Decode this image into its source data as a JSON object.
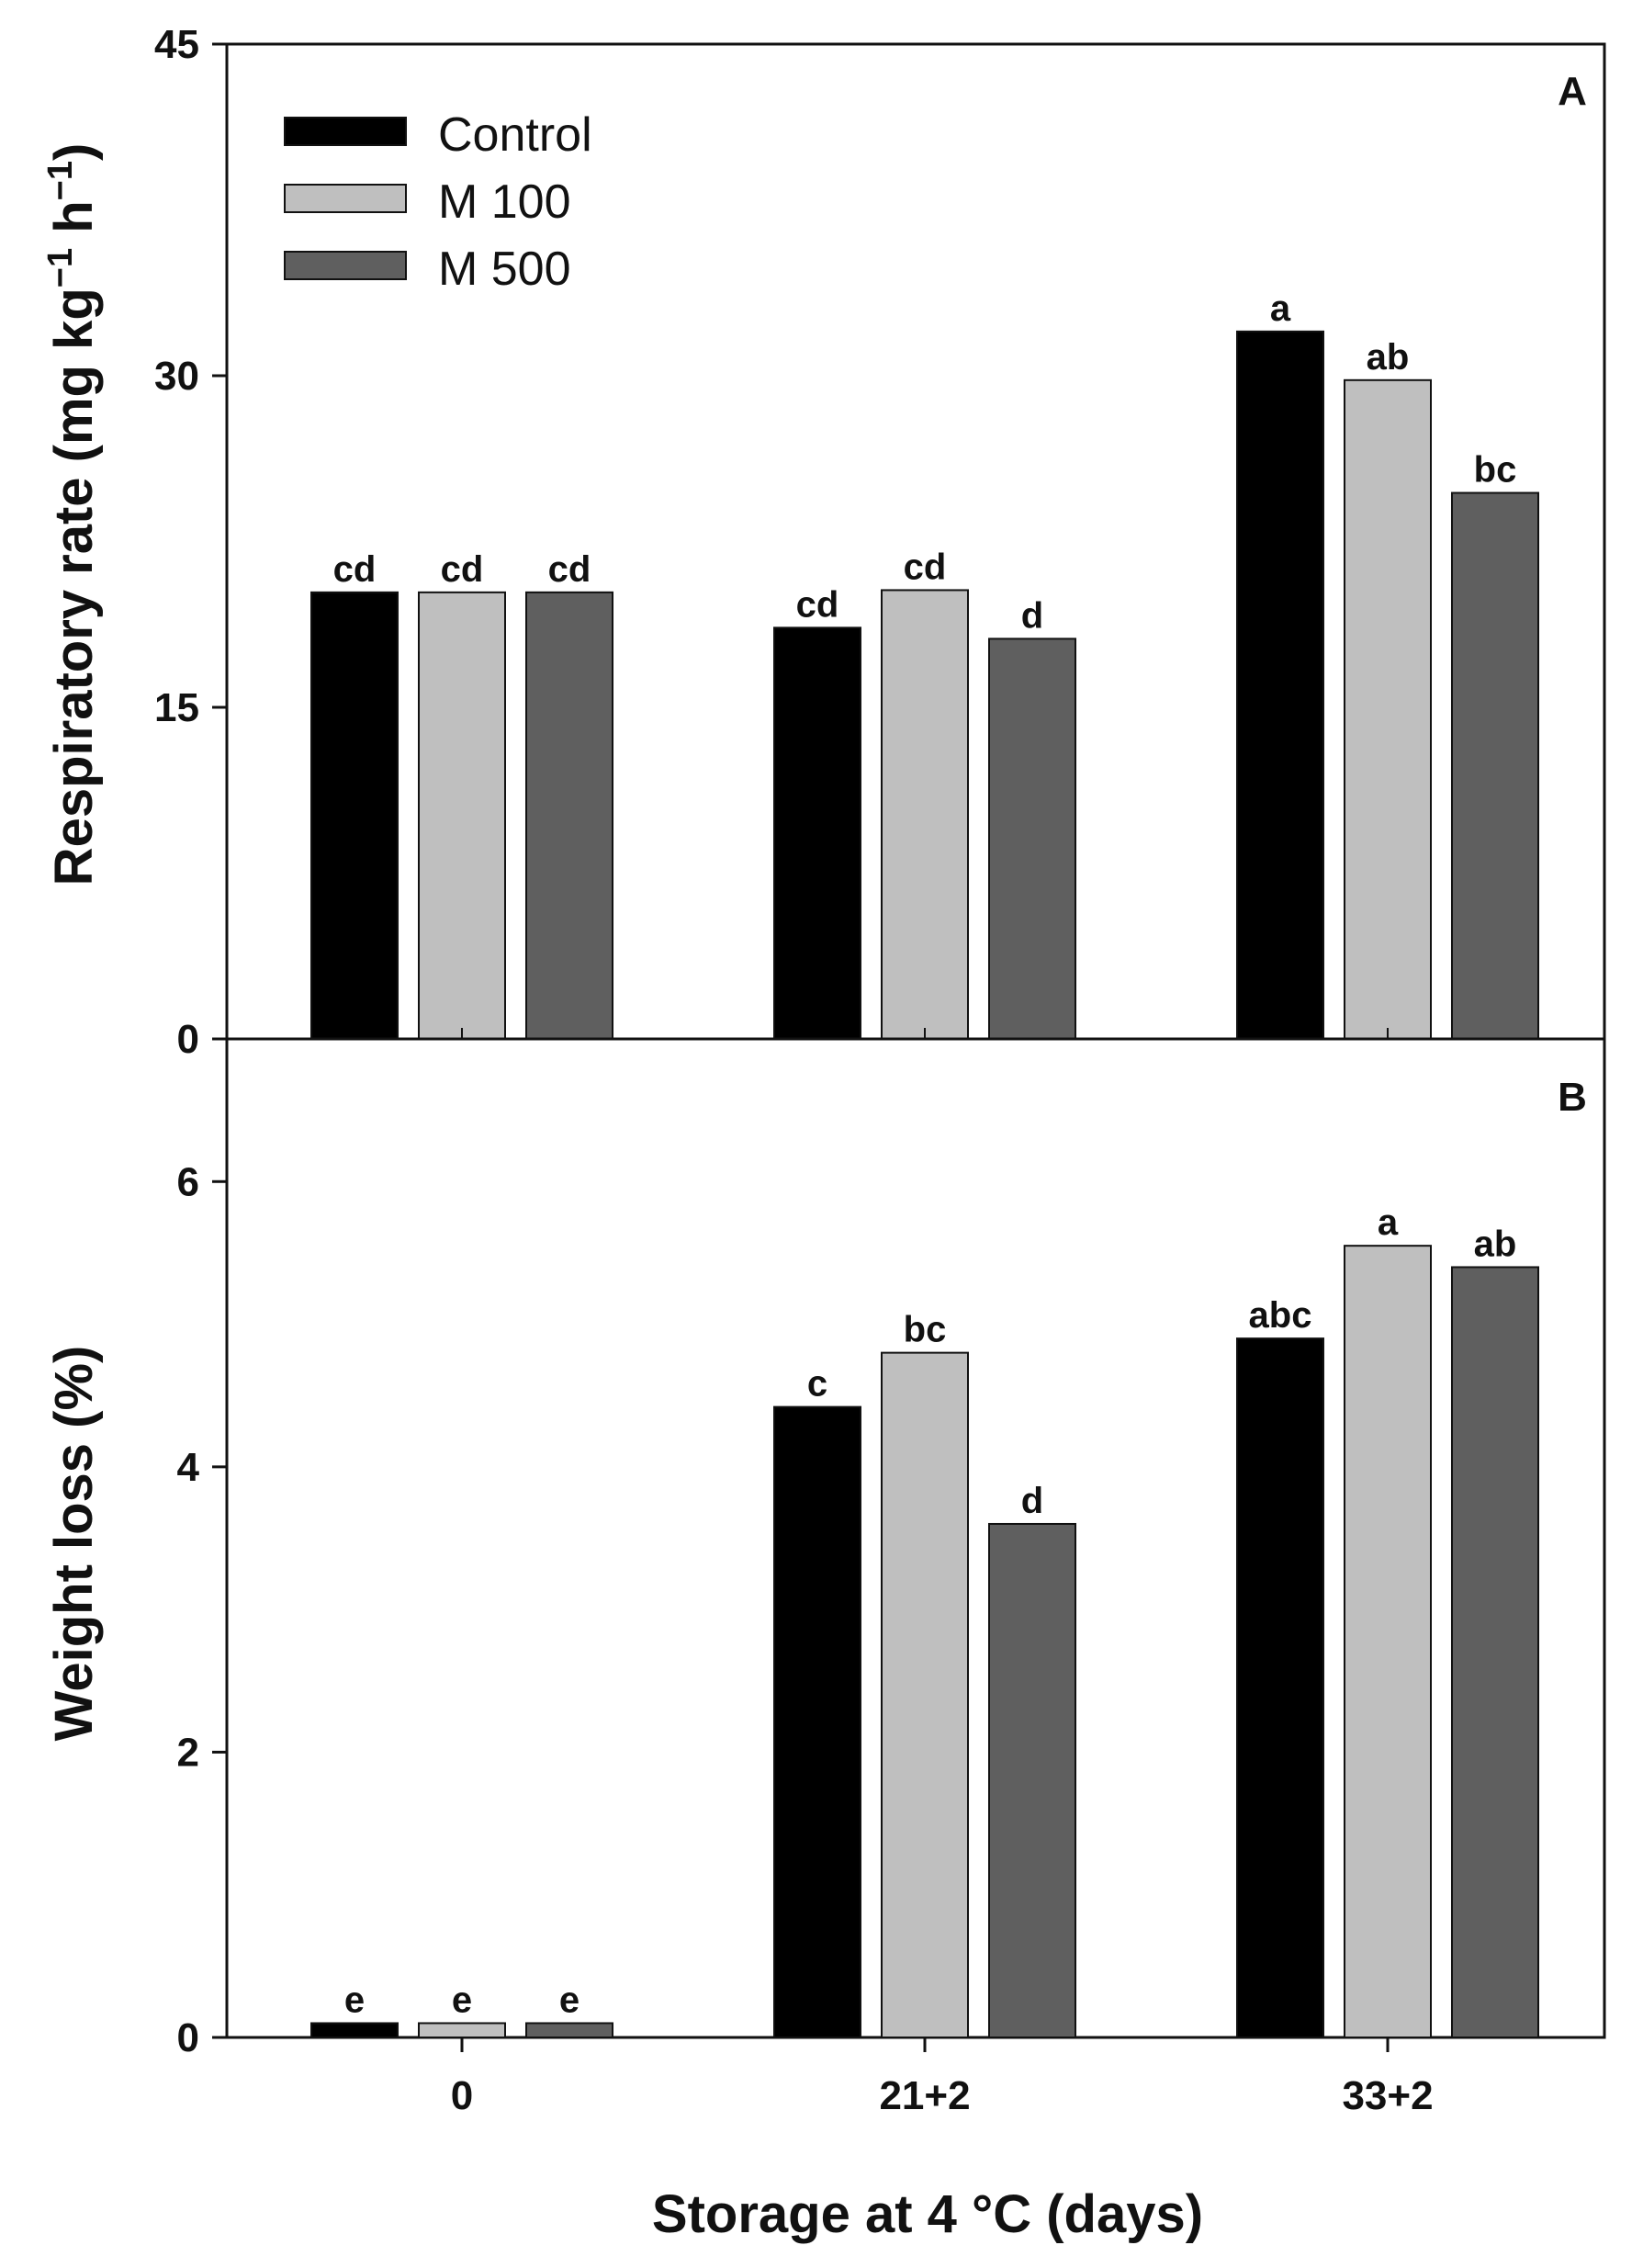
{
  "chart_data": [
    {
      "panel": "A",
      "type": "bar",
      "ylabel_main": "Respiratory rate (mg kg",
      "ylabel_sup1": "−1",
      "ylabel_mid": " h",
      "ylabel_sup2": "−1",
      "ylabel_end": ")",
      "ylim": [
        0,
        45
      ],
      "yticks": [
        0,
        15,
        30,
        45
      ],
      "categories": [
        "0",
        "21+2",
        "33+2"
      ],
      "series": [
        {
          "name": "Control",
          "color": "#000000",
          "values": [
            20.2,
            18.6,
            32.0
          ],
          "labels": [
            "cd",
            "cd",
            "a"
          ]
        },
        {
          "name": "M 100",
          "color": "#bfbfbf",
          "values": [
            20.2,
            20.3,
            29.8
          ],
          "labels": [
            "cd",
            "cd",
            "ab"
          ]
        },
        {
          "name": "M 500",
          "color": "#5f5f5f",
          "values": [
            20.2,
            18.1,
            24.7
          ],
          "labels": [
            "cd",
            "d",
            "bc"
          ]
        }
      ],
      "legend": {
        "position": "top-left",
        "entries": [
          "Control",
          "M 100",
          "M 500"
        ]
      }
    },
    {
      "panel": "B",
      "type": "bar",
      "ylabel": "Weight loss (%)",
      "ylim": [
        0,
        7
      ],
      "yticks": [
        0,
        2,
        4,
        6
      ],
      "categories": [
        "0",
        "21+2",
        "33+2"
      ],
      "series": [
        {
          "name": "Control",
          "color": "#000000",
          "values": [
            0.1,
            4.42,
            4.9
          ],
          "labels": [
            "e",
            "c",
            "abc"
          ]
        },
        {
          "name": "M 100",
          "color": "#bfbfbf",
          "values": [
            0.1,
            4.8,
            5.55
          ],
          "labels": [
            "e",
            "bc",
            "a"
          ]
        },
        {
          "name": "M 500",
          "color": "#5f5f5f",
          "values": [
            0.1,
            3.6,
            5.4
          ],
          "labels": [
            "e",
            "d",
            "ab"
          ]
        }
      ]
    }
  ],
  "xlabel": "Storage at 4 °C (days)"
}
